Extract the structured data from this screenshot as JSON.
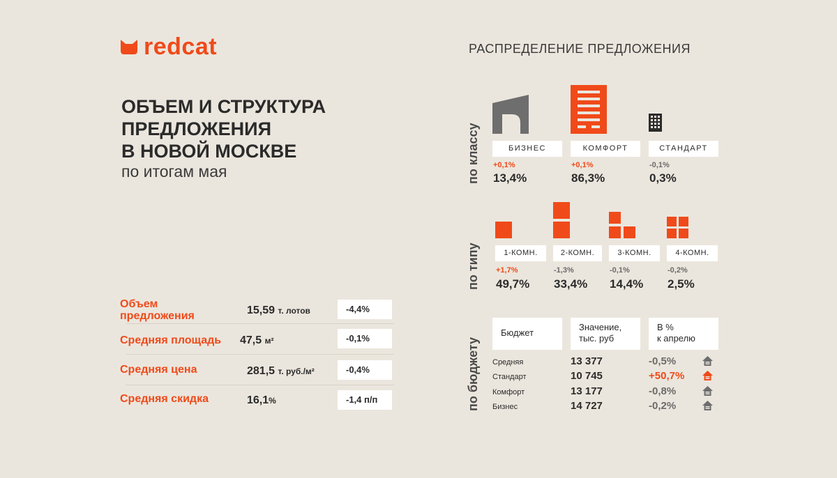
{
  "brand": {
    "name": "redcat"
  },
  "title": {
    "lines": [
      "ОБЪЕМ И СТРУКТУРА",
      "ПРЕДЛОЖЕНИЯ",
      "В НОВОЙ МОСКВЕ"
    ],
    "subtitle": "по итогам мая"
  },
  "metrics": [
    {
      "label": "Объем предложения",
      "value": "15,59",
      "unit": "т. лотов",
      "change": "-4,4%"
    },
    {
      "label": "Средняя площадь",
      "value": "47,5",
      "unit": "м²",
      "change": "-0,1%"
    },
    {
      "label": "Средняя цена",
      "value": "281,5",
      "unit": "т. руб./м²",
      "change": "-0,4%"
    },
    {
      "label": "Средняя скидка",
      "value": "16,1",
      "unit": "%",
      "change": "-1,4 п/п"
    }
  ],
  "distribution": {
    "title": "РАСПРЕДЕЛЕНИЕ ПРЕДЛОЖЕНИЯ",
    "by_class": {
      "label": "по классу",
      "items": [
        {
          "name": "БИЗНЕС",
          "change": "+0,1%",
          "share": "13,4%"
        },
        {
          "name": "КОМФОРТ",
          "change": "+0,1%",
          "share": "86,3%"
        },
        {
          "name": "СТАНДАРТ",
          "change": "-0,1%",
          "share": "0,3%"
        }
      ]
    },
    "by_type": {
      "label": "по типу",
      "items": [
        {
          "name": "1-КОМН.",
          "change": "+1,7%",
          "share": "49,7%"
        },
        {
          "name": "2-КОМН.",
          "change": "-1,3%",
          "share": "33,4%"
        },
        {
          "name": "3-КОМН.",
          "change": "-0,1%",
          "share": "14,4%"
        },
        {
          "name": "4-КОМН.",
          "change": "-0,2%",
          "share": "2,5%"
        }
      ]
    },
    "by_budget": {
      "label": "по бюджету",
      "headers": {
        "budget": "Бюджет",
        "value_1": "Значение,",
        "value_2": "тыс. руб",
        "change_1": "В %",
        "change_2": "к апрелю"
      },
      "rows": [
        {
          "name": "Средняя",
          "value": "13 377",
          "change": "-0,5%"
        },
        {
          "name": "Стандарт",
          "value": "10 745",
          "change": "+50,7%"
        },
        {
          "name": "Комфорт",
          "value": "13 177",
          "change": "-0,8%"
        },
        {
          "name": "Бизнес",
          "value": "14 727",
          "change": "-0,2%"
        }
      ]
    }
  },
  "colors": {
    "accent": "#f04a1a",
    "background": "#ebe6dd",
    "muted": "#6b6b6b",
    "dark": "#2b2b2b"
  }
}
